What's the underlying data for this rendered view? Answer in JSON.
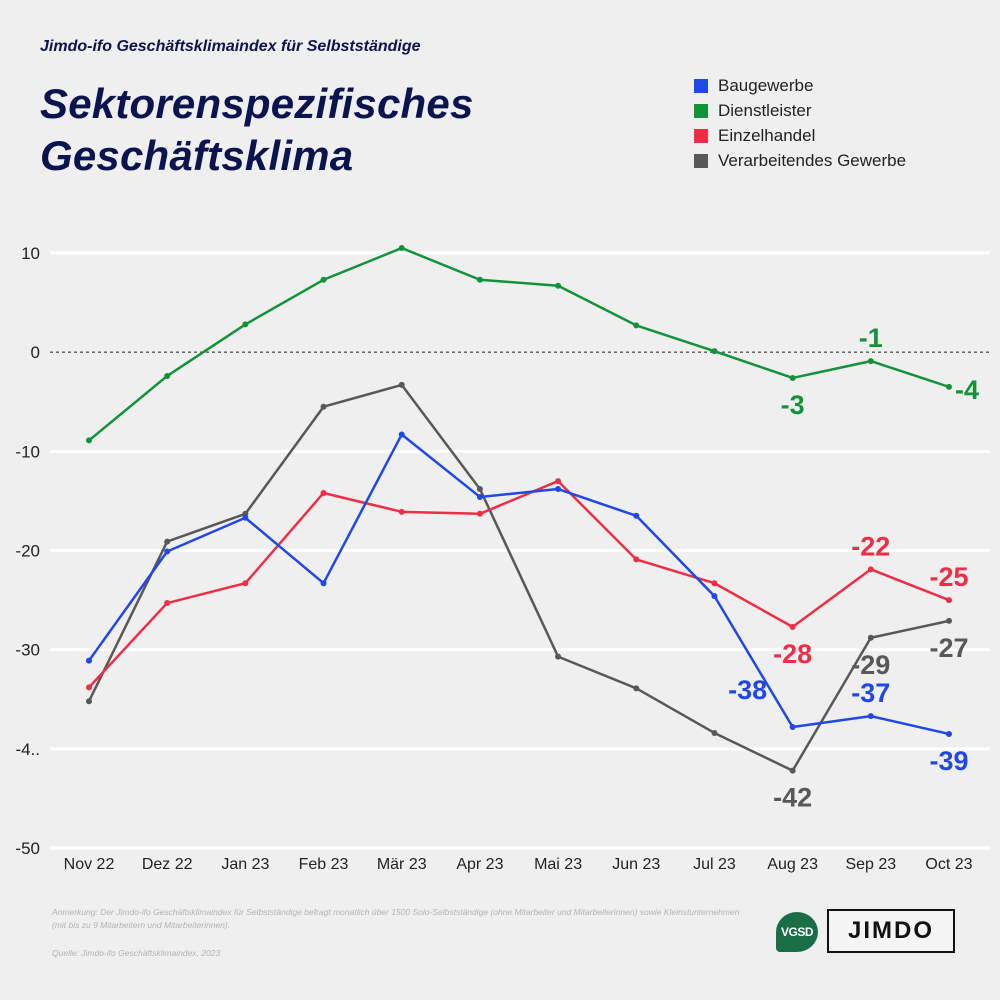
{
  "header": {
    "supertitle": "Jimdo-ifo Geschäftsklimaindex für Selbstständige",
    "title_line1": "Sektorenspezifisches",
    "title_line2": "Geschäftsklima"
  },
  "footer": {
    "note": "Anmerkung: Der Jimdo-ifo Geschäftsklimaindex für Selbstständige befragt monatlich über 1500 Solo-Selbstständige (ohne Mitarbeiter und Mitarbeiterinnen) sowie Kleinstunternehmen (mit bis zu 9 Mitarbeitern und Mitarbeiterinnen).",
    "source": "Quelle: Jimdo-ifo Geschäftsklimaindex, 2023",
    "logo_vgsd": "VGSD",
    "logo_jimdo": "JIMDO"
  },
  "chart_data": {
    "type": "line",
    "title": "Sektorenspezifisches Geschäftsklima",
    "xlabel": "",
    "ylabel": "",
    "categories": [
      "Nov 22",
      "Dez 22",
      "Jan 23",
      "Feb 23",
      "Mär 23",
      "Apr 23",
      "Mai 23",
      "Jun 23",
      "Jul 23",
      "Aug 23",
      "Sep 23",
      "Oct 23"
    ],
    "ylim": [
      -50,
      10
    ],
    "yticks": [
      10,
      0,
      -10,
      -20,
      -30,
      -40,
      -50
    ],
    "ytick_labels": [
      "10",
      "0",
      "-10",
      "-20",
      "-30",
      "-4..",
      "-50"
    ],
    "grid": true,
    "zero_line": "dashed",
    "legend_position": "top-right",
    "series": [
      {
        "name": "Baugewerbe",
        "color": "#2047e8",
        "values": [
          -31.1,
          -20.1,
          -16.7,
          -23.3,
          -8.3,
          -14.6,
          -13.8,
          -16.5,
          -24.6,
          -37.8,
          -36.7,
          -38.5
        ],
        "labels": [
          {
            "index": 9,
            "text": "-38",
            "pos": "left-above"
          },
          {
            "index": 10,
            "text": "-37",
            "pos": "above"
          },
          {
            "index": 11,
            "text": "-39",
            "pos": "below"
          }
        ]
      },
      {
        "name": "Dienstleister",
        "color": "#12933a",
        "values": [
          -8.9,
          -2.4,
          2.8,
          7.3,
          10.5,
          7.3,
          6.7,
          2.7,
          0.1,
          -2.6,
          -0.9,
          -3.5
        ],
        "labels": [
          {
            "index": 9,
            "text": "-3",
            "pos": "below"
          },
          {
            "index": 10,
            "text": "-1",
            "pos": "above"
          },
          {
            "index": 11,
            "text": "-4",
            "pos": "right"
          }
        ]
      },
      {
        "name": "Einzelhandel",
        "color": "#ef2d46",
        "values": [
          -33.8,
          -25.3,
          -23.3,
          -14.2,
          -16.1,
          -16.3,
          -13.0,
          -20.9,
          -23.3,
          -27.7,
          -21.9,
          -25.0
        ],
        "labels": [
          {
            "index": 9,
            "text": "-28",
            "pos": "below"
          },
          {
            "index": 10,
            "text": "-22",
            "pos": "above"
          },
          {
            "index": 11,
            "text": "-25",
            "pos": "above"
          }
        ]
      },
      {
        "name": "Verarbeitendes Gewerbe",
        "color": "#585858",
        "values": [
          -35.2,
          -19.1,
          -16.3,
          -5.5,
          -3.3,
          -13.8,
          -30.7,
          -33.9,
          -38.4,
          -42.2,
          -28.8,
          -27.1
        ],
        "labels": [
          {
            "index": 9,
            "text": "-42",
            "pos": "below"
          },
          {
            "index": 10,
            "text": "-29",
            "pos": "below"
          },
          {
            "index": 11,
            "text": "-27",
            "pos": "below"
          }
        ]
      }
    ]
  }
}
